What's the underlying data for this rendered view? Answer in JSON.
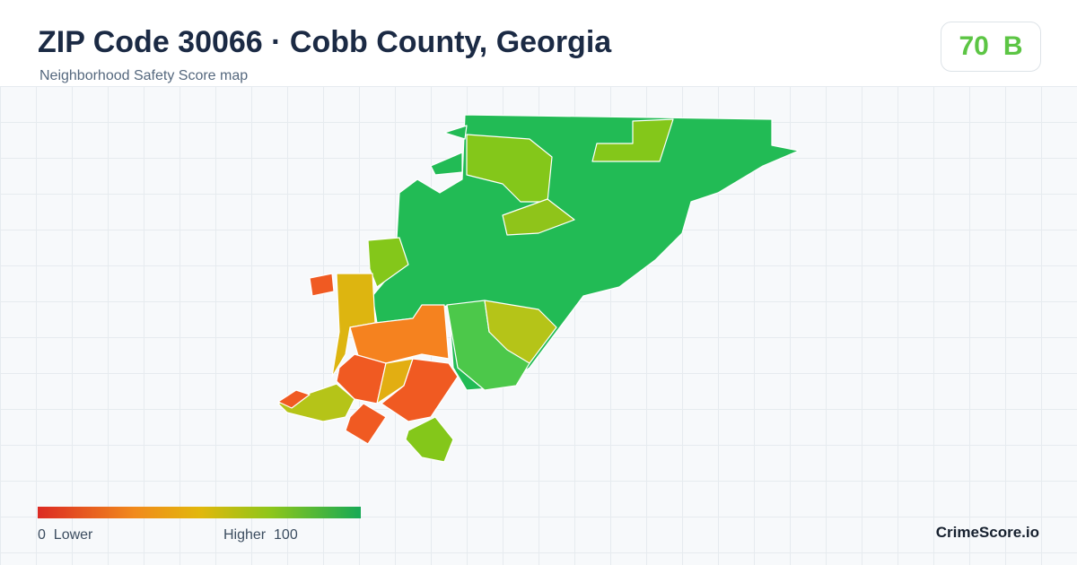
{
  "header": {
    "title": "ZIP Code 30066 · Cobb County, Georgia",
    "subtitle": "Neighborhood Safety Score map"
  },
  "score": {
    "value": 70,
    "grade": "B"
  },
  "legend": {
    "min": 0,
    "min_label": "Lower",
    "max_label": "Higher",
    "max": 100
  },
  "brand": "CrimeScore.io"
}
